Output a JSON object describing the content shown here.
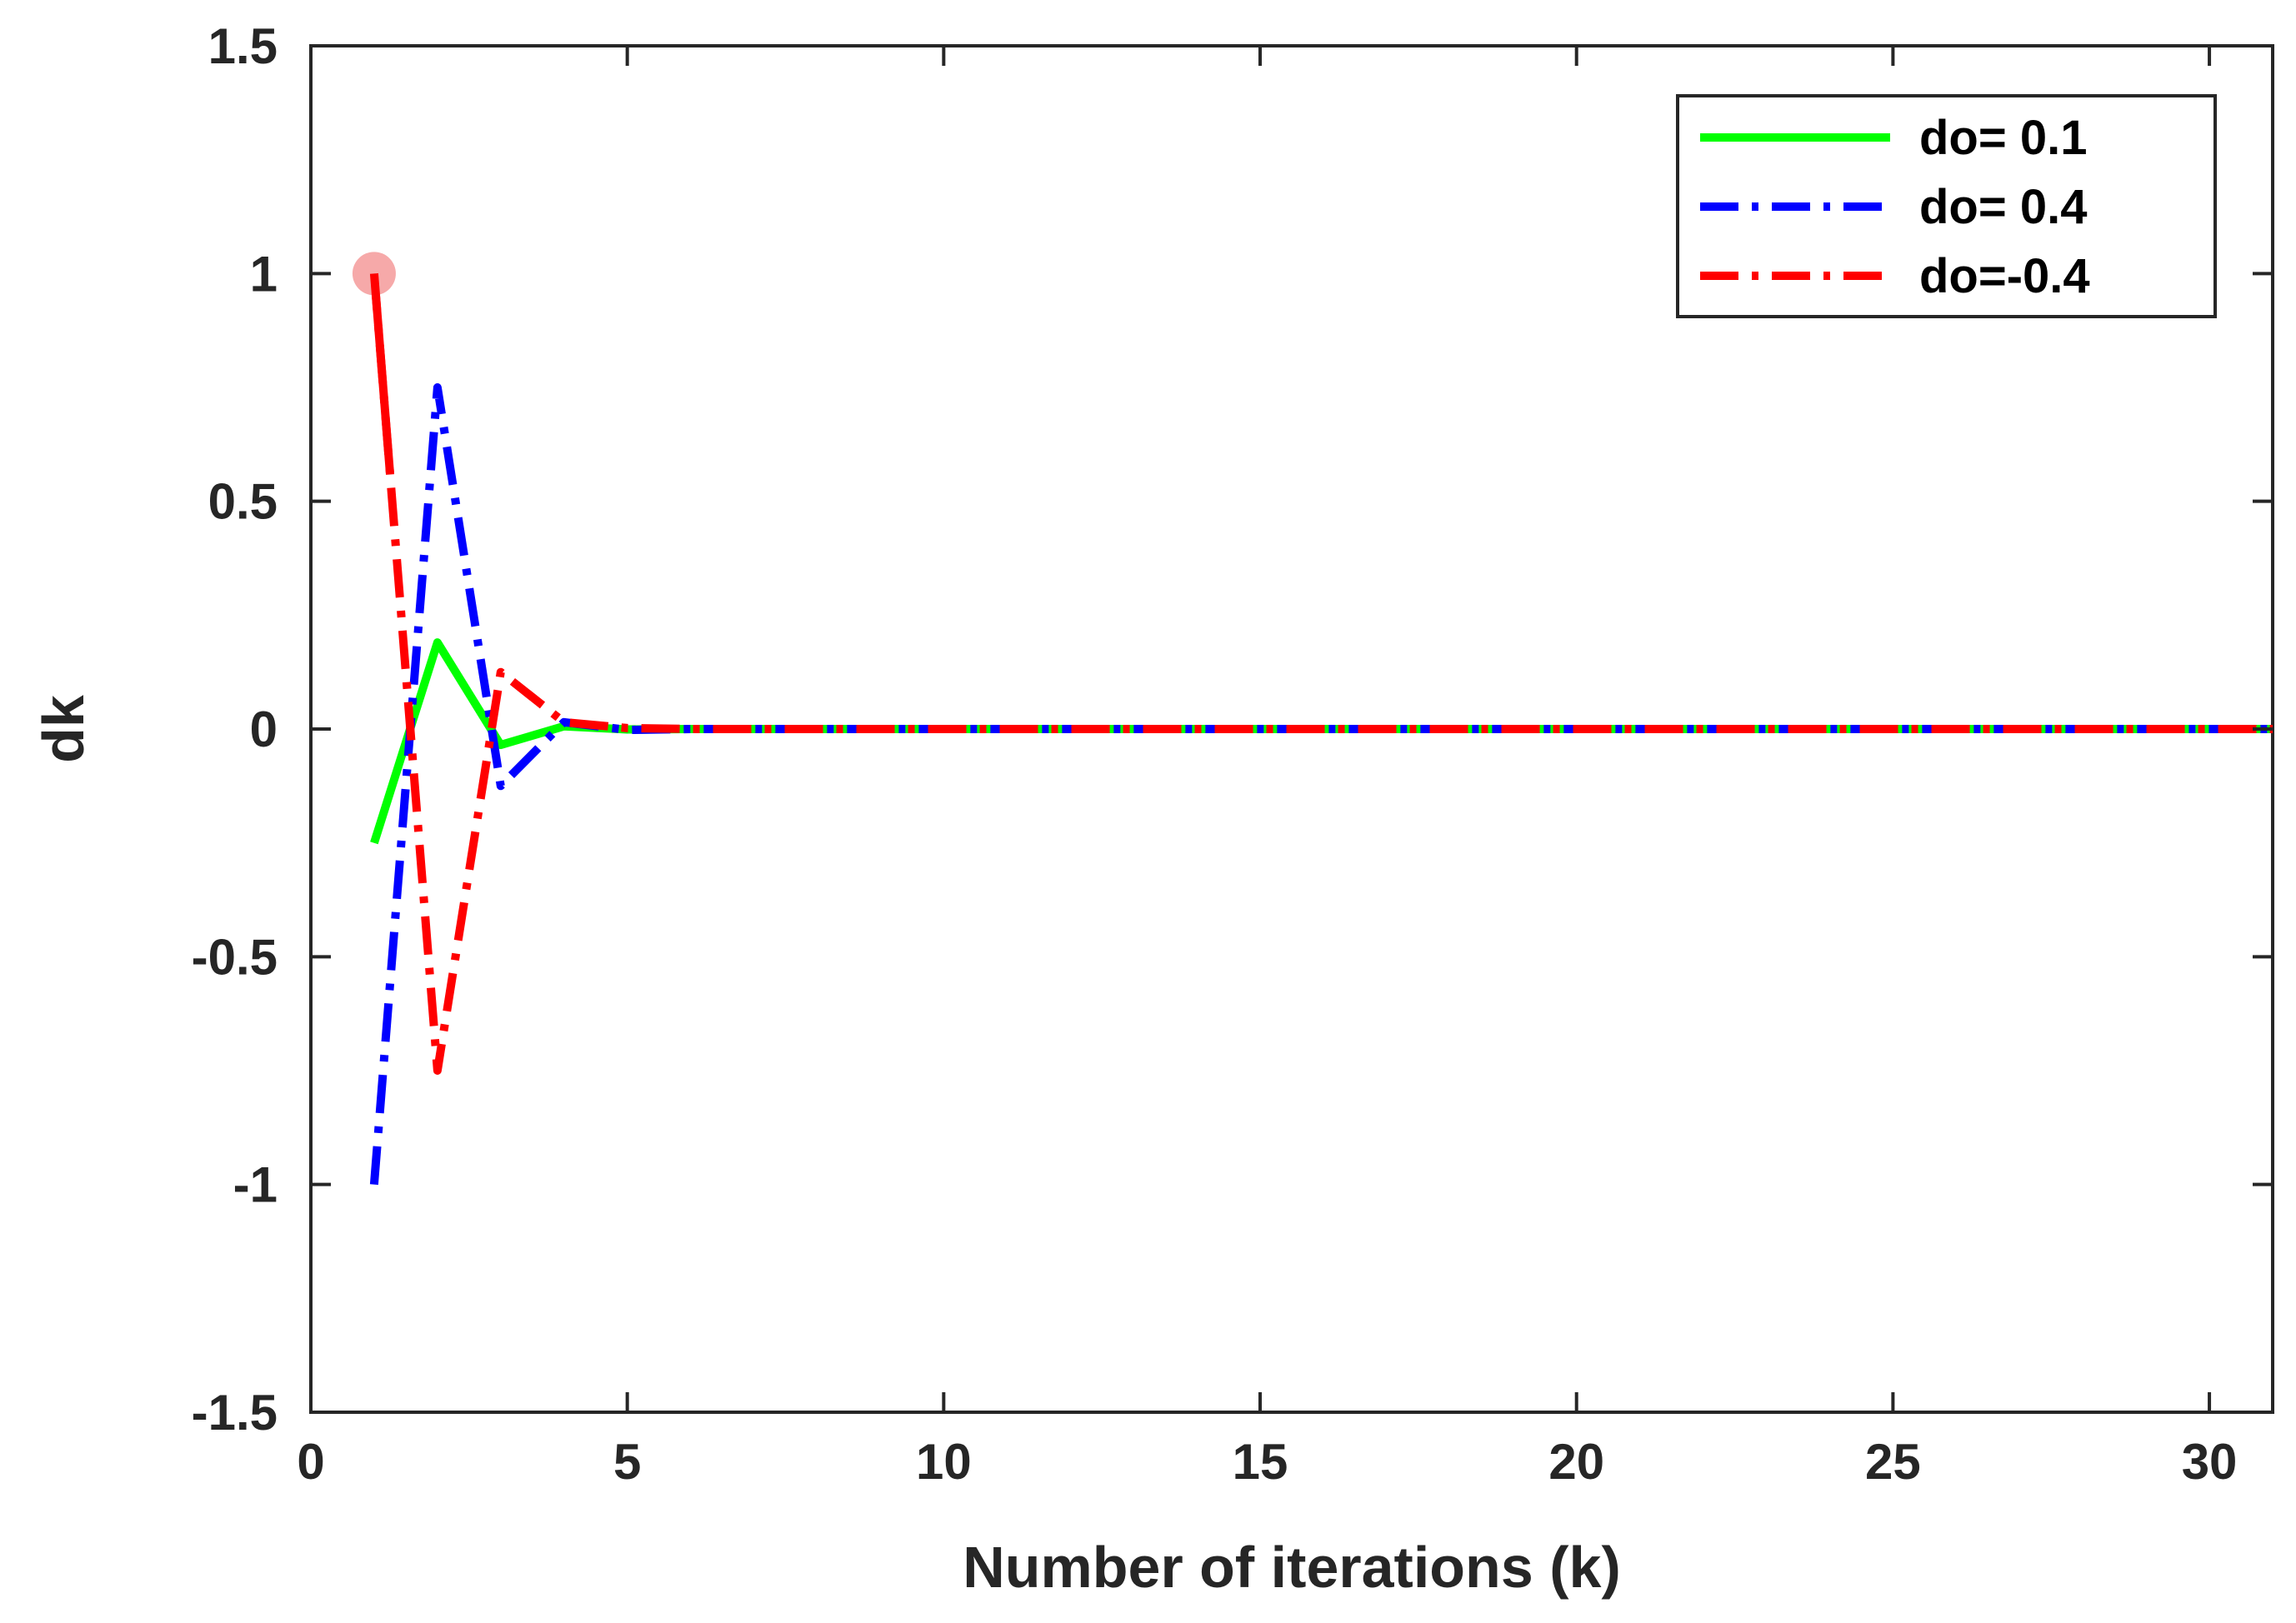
{
  "chart_data": {
    "type": "line",
    "xlabel": "Number of iterations (k)",
    "ylabel": "dk",
    "xlim": [
      0,
      31
    ],
    "ylim": [
      -1.5,
      1.5
    ],
    "xticks": [
      0,
      5,
      10,
      15,
      20,
      25,
      30
    ],
    "yticks": [
      -1.5,
      -1,
      -0.5,
      0,
      0.5,
      1,
      1.5
    ],
    "xtick_labels": [
      "0",
      "5",
      "10",
      "15",
      "20",
      "25",
      "30"
    ],
    "ytick_labels": [
      "-1.5",
      "-1",
      "-0.5",
      "0",
      "0.5",
      "1",
      "1.5"
    ],
    "grid": false,
    "legend_position": "top-right",
    "series": [
      {
        "name": "do= 0.1",
        "color": "#00ff00",
        "dash": "solid",
        "x": [
          1,
          2,
          3,
          4,
          5,
          6,
          7,
          8,
          9,
          10,
          11,
          12,
          13,
          14,
          15,
          16,
          17,
          18,
          19,
          20,
          21,
          22,
          23,
          24,
          25,
          26,
          27,
          28,
          29,
          30,
          31
        ],
        "y": [
          -0.25,
          0.19,
          -0.035,
          0.006,
          -0.001,
          0,
          0,
          0,
          0,
          0,
          0,
          0,
          0,
          0,
          0,
          0,
          0,
          0,
          0,
          0,
          0,
          0,
          0,
          0,
          0,
          0,
          0,
          0,
          0,
          0,
          0
        ]
      },
      {
        "name": "do= 0.4",
        "color": "#0000ff",
        "dash": "dashdot",
        "x": [
          1,
          2,
          3,
          4,
          5,
          6,
          7,
          8,
          9,
          10,
          11,
          12,
          13,
          14,
          15,
          16,
          17,
          18,
          19,
          20,
          21,
          22,
          23,
          24,
          25,
          26,
          27,
          28,
          29,
          30,
          31
        ],
        "y": [
          -1,
          0.75,
          -0.125,
          0.015,
          -0.002,
          0,
          0,
          0,
          0,
          0,
          0,
          0,
          0,
          0,
          0,
          0,
          0,
          0,
          0,
          0,
          0,
          0,
          0,
          0,
          0,
          0,
          0,
          0,
          0,
          0,
          0
        ]
      },
      {
        "name": "do=-0.4",
        "color": "#ff0000",
        "dash": "dashdot",
        "x": [
          1,
          2,
          3,
          4,
          5,
          6,
          7,
          8,
          9,
          10,
          11,
          12,
          13,
          14,
          15,
          16,
          17,
          18,
          19,
          20,
          21,
          22,
          23,
          24,
          25,
          26,
          27,
          28,
          29,
          30,
          31
        ],
        "y": [
          1,
          -0.75,
          0.125,
          0.015,
          0.002,
          0,
          0,
          0,
          0,
          0,
          0,
          0,
          0,
          0,
          0,
          0,
          0,
          0,
          0,
          0,
          0,
          0,
          0,
          0,
          0,
          0,
          0,
          0,
          0,
          0,
          0
        ]
      }
    ],
    "annotations": {
      "start_marker": {
        "x": 1,
        "y": 1,
        "color": "#f5a0a0"
      }
    }
  }
}
